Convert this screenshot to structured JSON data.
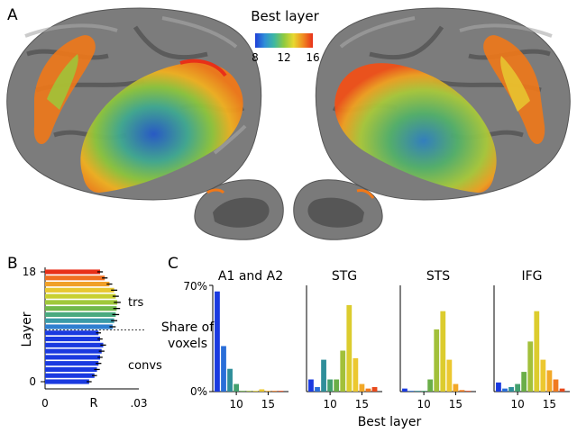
{
  "panel_labels": {
    "a": "A",
    "b": "B",
    "c": "C"
  },
  "colorbar": {
    "title": "Best layer",
    "ticks": [
      "8",
      "12",
      "16"
    ],
    "colors": [
      "#1f3fd8",
      "#2f8fd8",
      "#3fb8a0",
      "#8fca3f",
      "#e8d830",
      "#f08a20",
      "#e8301a"
    ]
  },
  "brain_colors": {
    "surface": "#6e6e6e",
    "sulcus": "#4a4a4a",
    "gyrus": "#9a9a9a",
    "early": "#2458c8",
    "mid": "#8cc43c",
    "late": "#f07818",
    "edge": "#e83018"
  },
  "chart_data": [
    {
      "type": "bar",
      "orientation": "horizontal",
      "panel": "B",
      "ylabel": "Layer",
      "xlabel": "R",
      "xlim": [
        0,
        0.03
      ],
      "xticks": [
        "0",
        ".03"
      ],
      "yticks": [
        "18",
        "0"
      ],
      "ylim": [
        0,
        18
      ],
      "layers": [
        0,
        1,
        2,
        3,
        4,
        5,
        6,
        7,
        8,
        9,
        10,
        11,
        12,
        13,
        14,
        15,
        16,
        17,
        18
      ],
      "values": [
        0.0141,
        0.0158,
        0.0166,
        0.0171,
        0.0176,
        0.0181,
        0.0186,
        0.0176,
        0.0171,
        0.0216,
        0.0221,
        0.0226,
        0.0229,
        0.0231,
        0.0226,
        0.0221,
        0.0206,
        0.0191,
        0.0176
      ],
      "errors": [
        0.0008,
        0.0008,
        0.0009,
        0.0009,
        0.0008,
        0.0009,
        0.0009,
        0.0008,
        0.0008,
        0.001,
        0.001,
        0.0011,
        0.0011,
        0.0011,
        0.001,
        0.001,
        0.0009,
        0.0009,
        0.0009
      ],
      "colors": [
        "#1a3ae0",
        "#1a3ae0",
        "#1a3ae0",
        "#1a3ae0",
        "#1a3ae0",
        "#1a3ae0",
        "#1a3ae0",
        "#1a3ae0",
        "#1a3ae0",
        "#2f7fd0",
        "#3a9aa8",
        "#4aaa80",
        "#70b84a",
        "#a0c83a",
        "#c8d030",
        "#e8c830",
        "#f0a028",
        "#f07020",
        "#e83018"
      ],
      "divider_at": 8.5,
      "annotations": [
        "trs",
        "convs"
      ]
    },
    {
      "type": "bar",
      "panel": "C",
      "ylabel": "Share of\nvoxels",
      "xlabel": "Best layer",
      "ylim": [
        0,
        70
      ],
      "yticks": [
        "0%",
        "70%"
      ],
      "xticks": [
        10,
        15
      ],
      "x": [
        7,
        8,
        9,
        10,
        11,
        12,
        13,
        14,
        15,
        16,
        17
      ],
      "bar_colors": [
        "#1a3ae0",
        "#2a6ed8",
        "#2f8e9a",
        "#43a06e",
        "#6aae48",
        "#a2c03a",
        "#dccc2e",
        "#ecc830",
        "#f2a828",
        "#f07a20",
        "#e84a1c"
      ],
      "series": [
        {
          "name": "A1 and A2",
          "values": [
            66,
            30,
            15,
            5,
            0.5,
            0.5,
            0.5,
            1.5,
            0.5,
            0.5,
            0.5
          ]
        },
        {
          "name": "STG",
          "values": [
            8,
            3,
            21,
            8,
            8,
            27,
            57,
            22,
            5,
            2,
            3
          ]
        },
        {
          "name": "STS",
          "values": [
            2,
            0.5,
            0.5,
            0.5,
            8,
            41,
            53,
            21,
            5,
            1,
            0.5
          ]
        },
        {
          "name": "IFG",
          "values": [
            6,
            2,
            3,
            5,
            13,
            33,
            53,
            21,
            14,
            8,
            2
          ]
        }
      ]
    }
  ]
}
